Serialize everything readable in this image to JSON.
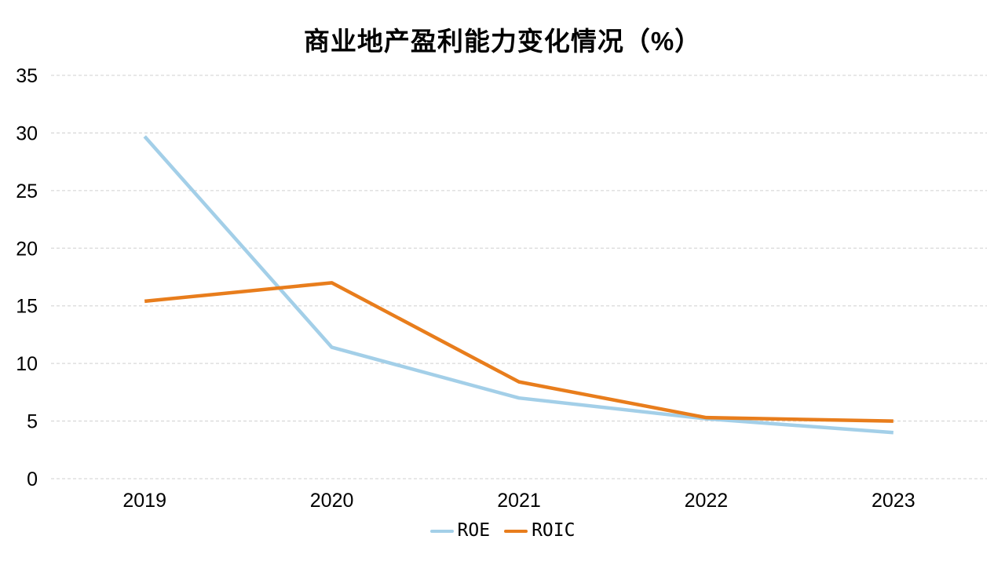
{
  "chart_data": {
    "type": "line",
    "title": "商业地产盈利能力变化情况（%）",
    "categories": [
      "2019",
      "2020",
      "2021",
      "2022",
      "2023"
    ],
    "series": [
      {
        "name": "ROE",
        "color": "#A3CFE8",
        "values": [
          29.7,
          11.4,
          7.0,
          5.2,
          4.0
        ]
      },
      {
        "name": "ROIC",
        "color": "#E87D1C",
        "values": [
          15.4,
          17.0,
          8.4,
          5.3,
          5.0
        ]
      }
    ],
    "y_ticks": [
      0,
      5,
      10,
      15,
      20,
      25,
      30,
      35
    ],
    "ylim": [
      0,
      35
    ],
    "xlabel": "",
    "ylabel": "",
    "grid": "horizontal-dashed",
    "legend_position": "bottom"
  },
  "colors": {
    "background": "#FFFFFF",
    "grid": "#D9D9D9",
    "text": "#000000",
    "roe_line": "#A3CFE8",
    "roic_line": "#E87D1C"
  }
}
